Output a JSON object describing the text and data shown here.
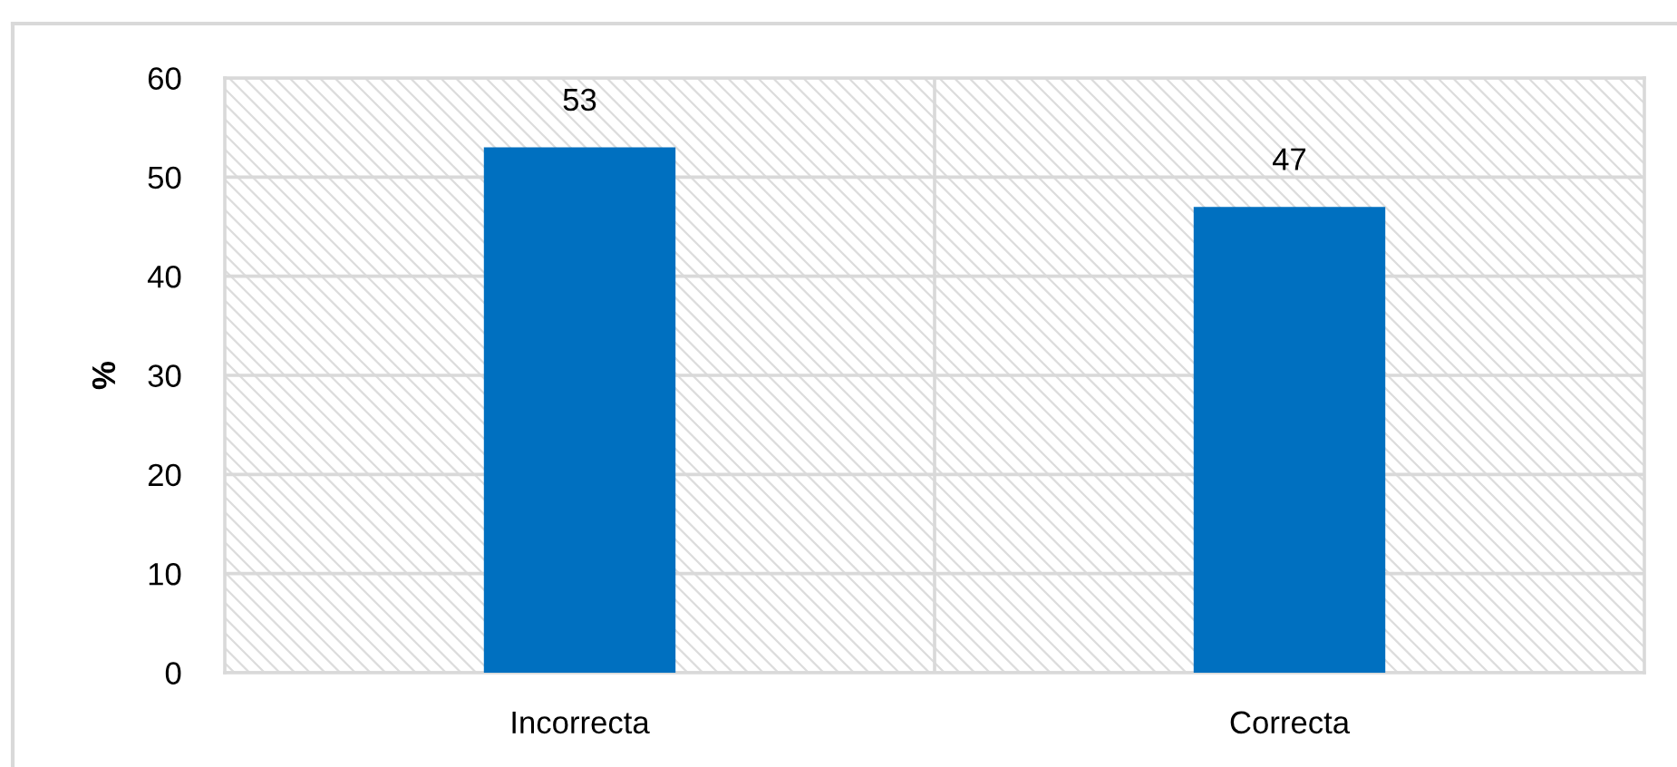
{
  "chart_data": {
    "type": "bar",
    "ylabel": "%",
    "categories": [
      "Incorrecta",
      "Correcta"
    ],
    "values": [
      53,
      47
    ],
    "color": "#0070c0",
    "ylim": [
      0,
      60
    ],
    "yticks": [
      0,
      10,
      20,
      30,
      40,
      50,
      60
    ],
    "grid": true,
    "data_labels": true
  }
}
